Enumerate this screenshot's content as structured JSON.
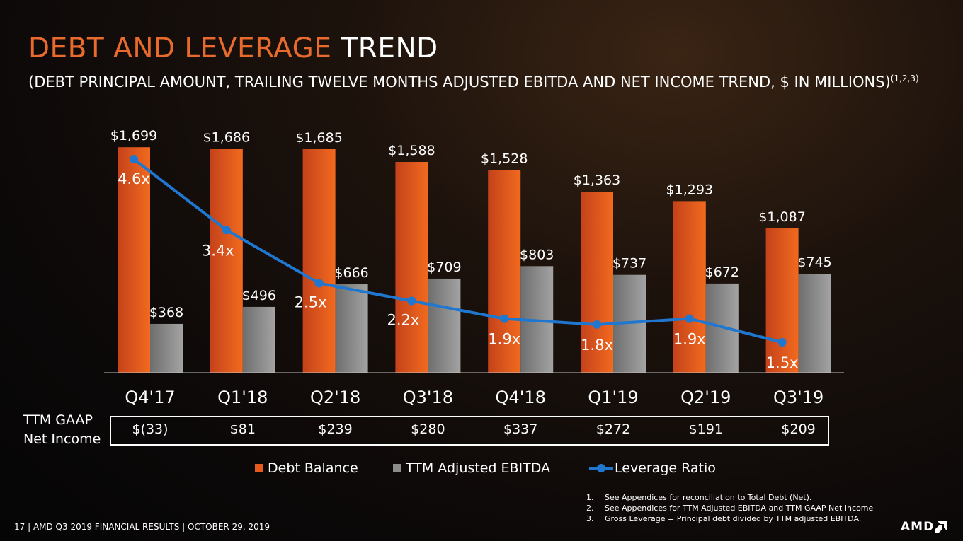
{
  "title": {
    "accent": "DEBT AND LEVERAGE",
    "rest": "TREND"
  },
  "subtitle": {
    "text": "(DEBT PRINCIPAL AMOUNT, TRAILING TWELVE MONTHS ADJUSTED EBITDA AND NET INCOME TREND, $ IN MILLIONS)",
    "sup": "(1,2,3)"
  },
  "colors": {
    "debt": "#e65a1e",
    "ebitda": "#8c8c8c",
    "leverage": "#1f77d0",
    "accent": "#e86a2c"
  },
  "chart_data": {
    "type": "bar",
    "categories": [
      "Q4'17",
      "Q1'18",
      "Q2'18",
      "Q3'18",
      "Q4'18",
      "Q1'19",
      "Q2'19",
      "Q3'19"
    ],
    "series": [
      {
        "name": "Debt Balance",
        "values": [
          1699,
          1686,
          1685,
          1588,
          1528,
          1363,
          1293,
          1087
        ],
        "labels": [
          "$1,699",
          "$1,686",
          "$1,685",
          "$1,588",
          "$1,528",
          "$1,363",
          "$1,293",
          "$1,087"
        ]
      },
      {
        "name": "TTM Adjusted EBITDA",
        "values": [
          368,
          496,
          666,
          709,
          803,
          737,
          672,
          745
        ],
        "labels": [
          "$368",
          "$496",
          "$666",
          "$709",
          "$803",
          "$737",
          "$672",
          "$745"
        ]
      },
      {
        "name": "Leverage Ratio",
        "type": "line",
        "values": [
          4.6,
          3.4,
          2.5,
          2.2,
          1.9,
          1.8,
          1.9,
          1.5
        ],
        "labels": [
          "4.6x",
          "3.4x",
          "2.5x",
          "2.2x",
          "1.9x",
          "1.8x",
          "1.9x",
          "1.5x"
        ]
      }
    ],
    "ylim": [
      0,
      1700
    ],
    "legend": "bottom"
  },
  "net_income": {
    "label_line1": "TTM GAAP",
    "label_line2": "Net Income",
    "values": [
      "$(33)",
      "$81",
      "$239",
      "$280",
      "$337",
      "$272",
      "$191",
      "$209"
    ]
  },
  "legend": {
    "debt": "Debt Balance",
    "ebitda": "TTM Adjusted EBITDA",
    "leverage": "Leverage Ratio"
  },
  "footnotes": [
    {
      "num": "1.",
      "text": "See  Appendices for  reconciliation to Total Debt (Net)."
    },
    {
      "num": "2.",
      "text": "See Appendices for TTM Adjusted EBITDA and TTM GAAP Net Income"
    },
    {
      "num": "3.",
      "text": "Gross Leverage  = Principal debt divided by TTM adjusted EBITDA."
    }
  ],
  "footer": "17 | AMD Q3 2019 FINANCIAL RESULTS | OCTOBER 29, 2019",
  "logo": {
    "text": "AMD",
    "icon": "amd-arrow-icon"
  }
}
